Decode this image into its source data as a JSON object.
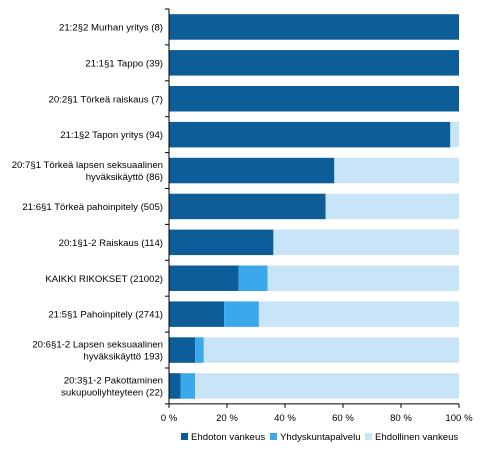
{
  "chart_data": {
    "type": "bar",
    "orientation": "horizontal",
    "stacked": true,
    "percent": true,
    "categories": [
      "21:2§2 Murhan yritys (8)",
      "21:1§1 Tappo (39)",
      "20:2§1 Törkeä raiskaus (7)",
      "21:1§2 Tapon yritys (94)",
      "20:7§1 Törkeä lapsen seksuaalinen hyväksikäyttö (86)",
      "21:6§1 Törkeä pahoinpitely (505)",
      "20:1§1-2 Raiskaus (114)",
      "KAIKKI RIKOKSET (21002)",
      "21:5§1 Pahoinpitely (2741)",
      "20:6§1-2 Lapsen seksuaalinen hyväksikäyttö 193)",
      "20:3§1-2 Pakottaminen sukupuoliyhteyteen (22)"
    ],
    "category_lines": [
      [
        "21:2§2 Murhan yritys (8)"
      ],
      [
        "21:1§1 Tappo (39)"
      ],
      [
        "20:2§1 Törkeä raiskaus (7)"
      ],
      [
        "21:1§2 Tapon yritys (94)"
      ],
      [
        "20:7§1 Törkeä lapsen seksuaalinen",
        "hyväksikäyttö (86)"
      ],
      [
        "21:6§1 Törkeä pahoinpitely (505)"
      ],
      [
        "20:1§1-2 Raiskaus (114)"
      ],
      [
        "KAIKKI RIKOKSET (21002)"
      ],
      [
        "21:5§1 Pahoinpitely (2741)"
      ],
      [
        "20:6§1-2 Lapsen seksuaalinen",
        "hyväksikäyttö 193)"
      ],
      [
        "20:3§1-2 Pakottaminen",
        "sukupuoliyhteyteen (22)"
      ]
    ],
    "series": [
      {
        "name": "Ehdoton vankeus",
        "color": "#0d5d98",
        "values": [
          100,
          100,
          100,
          97,
          57,
          54,
          36,
          24,
          19,
          9,
          4
        ]
      },
      {
        "name": "Yhdyskuntapalvelu",
        "color": "#3ba8ec",
        "values": [
          0,
          0,
          0,
          0,
          0,
          0,
          0,
          10,
          12,
          3,
          5
        ]
      },
      {
        "name": "Ehdollinen vankeus",
        "color": "#c7e5f7",
        "values": [
          0,
          0,
          0,
          3,
          43,
          46,
          64,
          66,
          69,
          88,
          91
        ]
      }
    ],
    "xlim": [
      0,
      100
    ],
    "x_ticks": [
      "0 %",
      "20 %",
      "40 %",
      "60 %",
      "80 %",
      "100 %"
    ],
    "grid": false,
    "legend_position": "bottom"
  }
}
